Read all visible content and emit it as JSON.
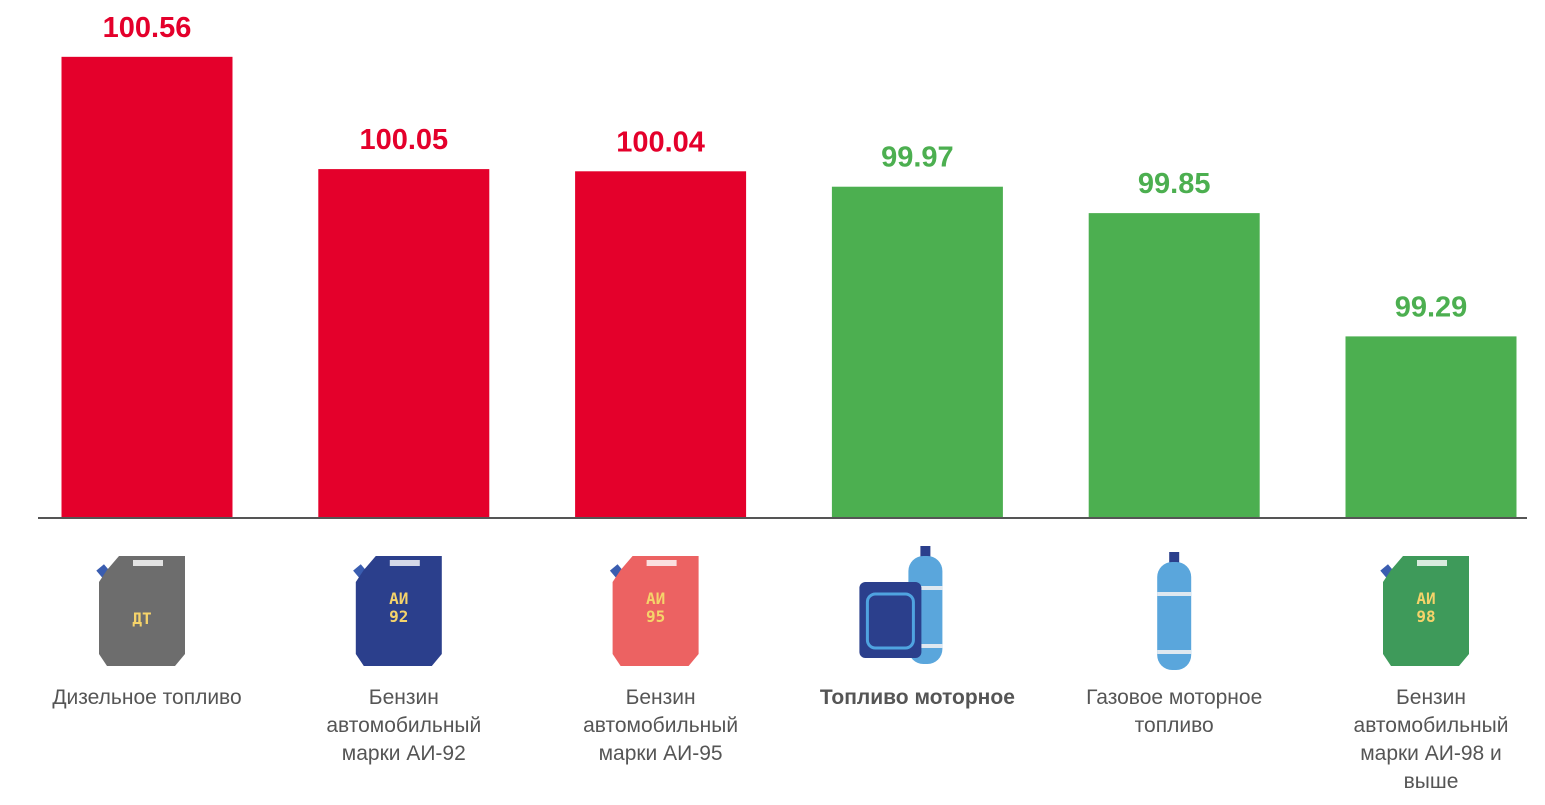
{
  "chart_data": {
    "type": "bar",
    "categories": [
      "Дизельное топливо",
      "Бензин автомобильный марки АИ-92",
      "Бензин автомобильный марки АИ-95",
      "Топливо моторное",
      "Газовое моторное топливо",
      "Бензин автомобильный марки АИ-98 и выше"
    ],
    "values": [
      100.56,
      100.05,
      100.04,
      99.97,
      99.85,
      99.29
    ],
    "colors": [
      "#e4002b",
      "#e4002b",
      "#e4002b",
      "#4caf50",
      "#4caf50",
      "#4caf50"
    ],
    "bold_category": 3,
    "icon_labels": [
      [
        "ДТ"
      ],
      [
        "АИ",
        "92"
      ],
      [
        "АИ",
        "95"
      ],
      [],
      [],
      [
        "АИ",
        "98"
      ]
    ],
    "ylim": [
      98.465,
      100.8
    ]
  }
}
